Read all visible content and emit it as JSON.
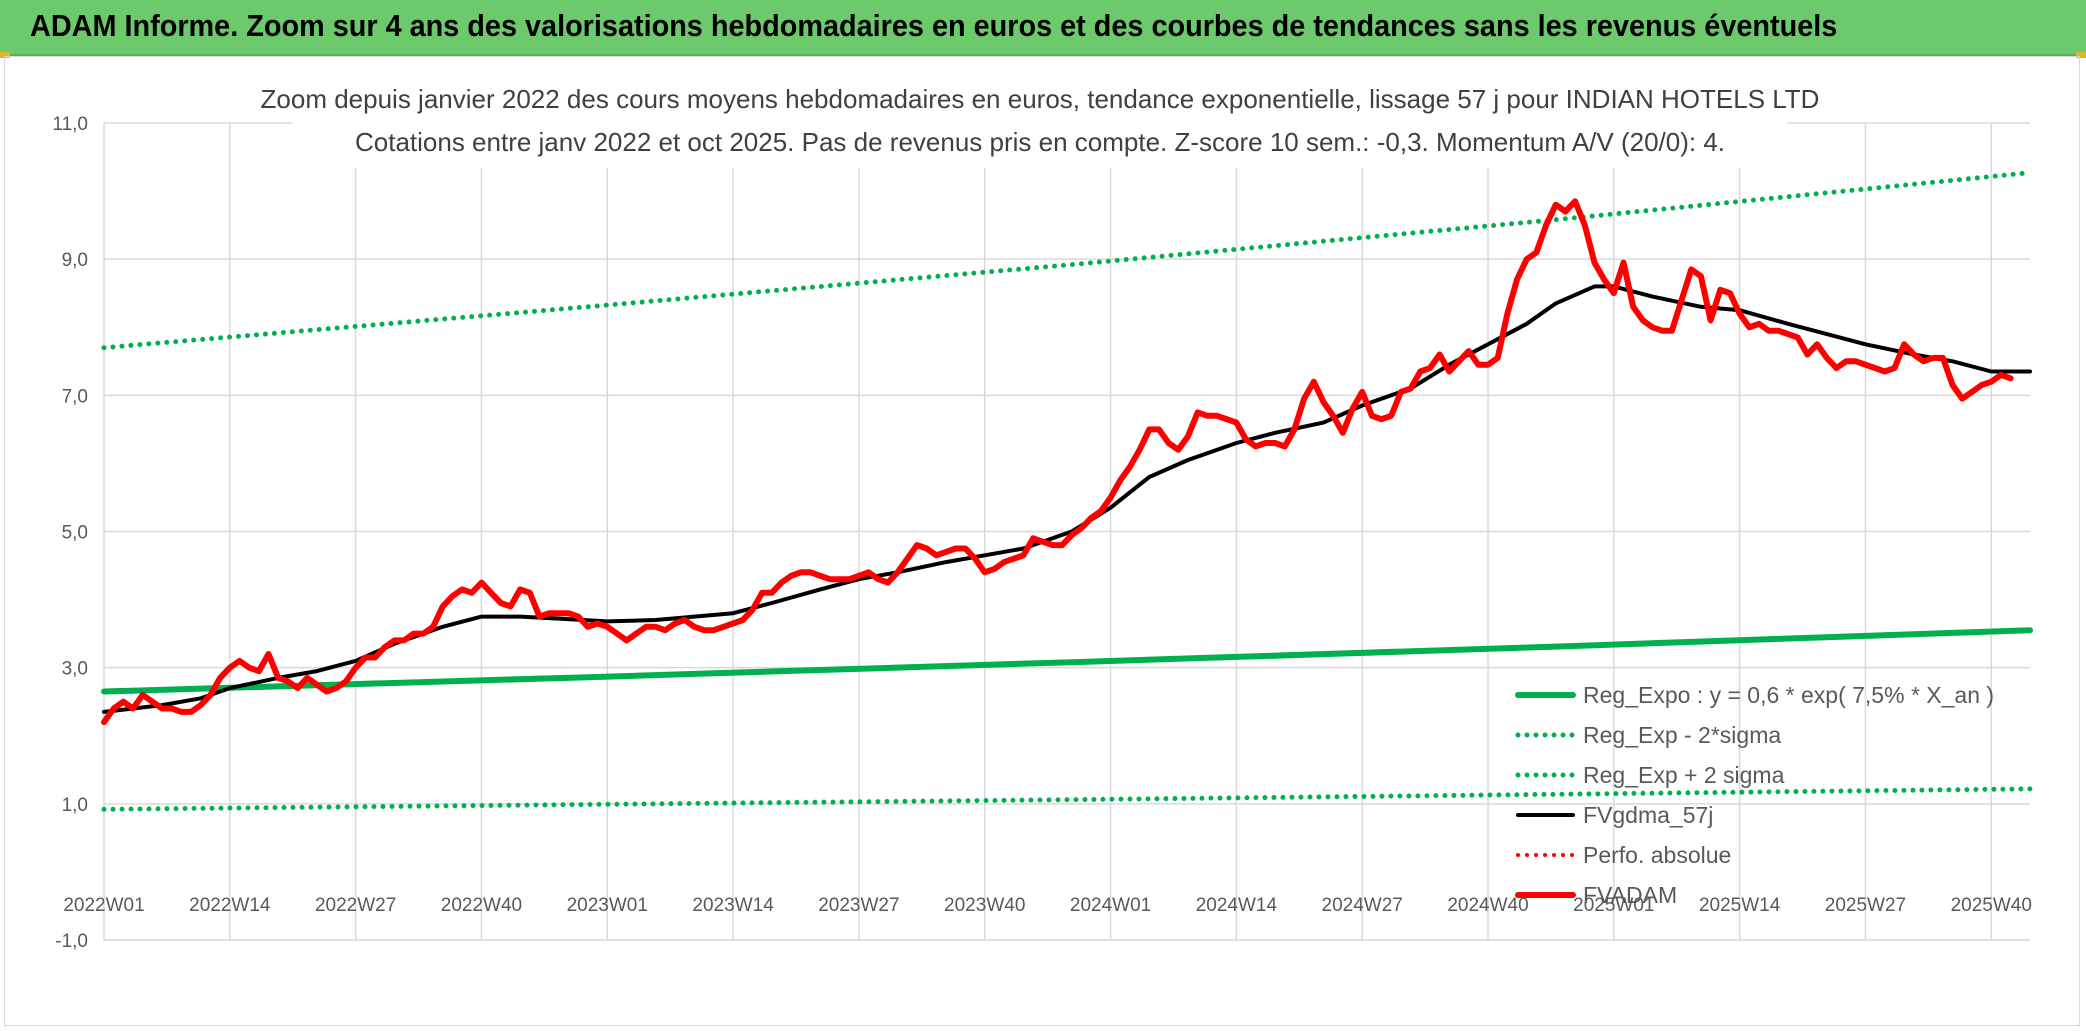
{
  "header": {
    "title": "ADAM Informe. Zoom sur 4 ans des valorisations hebdomadaires en euros et des courbes de tendances sans les revenus éventuels"
  },
  "colors": {
    "header_bg": "#6cc96c",
    "green": "#00b050",
    "black": "#000000",
    "red": "#ff0000",
    "grid": "#d9d9d9"
  },
  "chart_data": {
    "type": "line",
    "subtitle_lines": [
      "Zoom depuis janvier 2022 des cours moyens hebdomadaires en euros, tendance exponentielle, lissage 57 j pour INDIAN HOTELS LTD",
      "Cotations entre janv 2022 et oct 2025. Pas de revenus pris en compte. Z-score 10 sem.: -0,3. Momentum A/V (20/0): 4."
    ],
    "ylim": [
      -1,
      11
    ],
    "y_ticks": [
      {
        "value": 11,
        "label": "11,0"
      },
      {
        "value": 9,
        "label": "9,0"
      },
      {
        "value": 7,
        "label": "7,0"
      },
      {
        "value": 5,
        "label": "5,0"
      },
      {
        "value": 3,
        "label": "3,0"
      },
      {
        "value": 1,
        "label": "1,0"
      },
      {
        "value": -1,
        "label": "-1,0"
      }
    ],
    "x_range": [
      0,
      199
    ],
    "x_ticks": [
      {
        "index": 0,
        "label": "2022W01"
      },
      {
        "index": 13,
        "label": "2022W14"
      },
      {
        "index": 26,
        "label": "2022W27"
      },
      {
        "index": 39,
        "label": "2022W40"
      },
      {
        "index": 52,
        "label": "2023W01"
      },
      {
        "index": 65,
        "label": "2023W14"
      },
      {
        "index": 78,
        "label": "2023W27"
      },
      {
        "index": 91,
        "label": "2023W40"
      },
      {
        "index": 104,
        "label": "2024W01"
      },
      {
        "index": 117,
        "label": "2024W14"
      },
      {
        "index": 130,
        "label": "2024W27"
      },
      {
        "index": 143,
        "label": "2024W40"
      },
      {
        "index": 156,
        "label": "2025W01"
      },
      {
        "index": 169,
        "label": "2025W14"
      },
      {
        "index": 182,
        "label": "2025W27"
      },
      {
        "index": 195,
        "label": "2025W40"
      }
    ],
    "legend": {
      "placement": "bottom-right",
      "entries": [
        {
          "key": "reg_expo",
          "label": "Reg_Expo : y = 0,6 * exp( 7,5% *  X_an )"
        },
        {
          "key": "reg_minus",
          "label": "Reg_Exp - 2*sigma"
        },
        {
          "key": "reg_plus",
          "label": "Reg_Exp + 2 sigma"
        },
        {
          "key": "fvgdma",
          "label": "FVgdma_57j"
        },
        {
          "key": "perfo",
          "label": "Perfo. absolue"
        },
        {
          "key": "fvadam",
          "label": "FVADAM"
        }
      ]
    },
    "series": [
      {
        "key": "reg_expo",
        "name": "Reg_Expo : y = 0,6 * exp( 7,5% *  X_an )",
        "color": "#00b050",
        "style": "solid",
        "width": 6,
        "points": [
          [
            0,
            2.65
          ],
          [
            50,
            2.86
          ],
          [
            100,
            3.08
          ],
          [
            150,
            3.31
          ],
          [
            199,
            3.55
          ]
        ]
      },
      {
        "key": "reg_minus",
        "name": "Reg_Exp - 2*sigma",
        "color": "#00b050",
        "style": "dotted",
        "width": 5,
        "points": [
          [
            0,
            0.92
          ],
          [
            50,
            0.99
          ],
          [
            100,
            1.06
          ],
          [
            150,
            1.14
          ],
          [
            199,
            1.22
          ]
        ]
      },
      {
        "key": "reg_plus",
        "name": "Reg_Exp + 2 sigma",
        "color": "#00b050",
        "style": "dotted",
        "width": 5,
        "points": [
          [
            0,
            7.7
          ],
          [
            50,
            8.3
          ],
          [
            100,
            8.92
          ],
          [
            150,
            9.58
          ],
          [
            199,
            10.27
          ]
        ]
      },
      {
        "key": "fvgdma",
        "name": "FVgdma_57j",
        "color": "#000000",
        "style": "solid",
        "width": 4,
        "points": [
          [
            0,
            2.35
          ],
          [
            6,
            2.45
          ],
          [
            10,
            2.55
          ],
          [
            13,
            2.7
          ],
          [
            18,
            2.85
          ],
          [
            22,
            2.95
          ],
          [
            26,
            3.1
          ],
          [
            30,
            3.35
          ],
          [
            35,
            3.6
          ],
          [
            39,
            3.75
          ],
          [
            43,
            3.75
          ],
          [
            47,
            3.72
          ],
          [
            52,
            3.68
          ],
          [
            57,
            3.7
          ],
          [
            61,
            3.75
          ],
          [
            65,
            3.8
          ],
          [
            69,
            3.95
          ],
          [
            74,
            4.15
          ],
          [
            78,
            4.3
          ],
          [
            82,
            4.4
          ],
          [
            87,
            4.55
          ],
          [
            91,
            4.65
          ],
          [
            95,
            4.75
          ],
          [
            100,
            5.0
          ],
          [
            104,
            5.35
          ],
          [
            108,
            5.8
          ],
          [
            112,
            6.05
          ],
          [
            117,
            6.3
          ],
          [
            121,
            6.45
          ],
          [
            126,
            6.6
          ],
          [
            130,
            6.85
          ],
          [
            135,
            7.1
          ],
          [
            139,
            7.45
          ],
          [
            143,
            7.75
          ],
          [
            147,
            8.05
          ],
          [
            150,
            8.35
          ],
          [
            154,
            8.6
          ],
          [
            156,
            8.6
          ],
          [
            160,
            8.45
          ],
          [
            165,
            8.3
          ],
          [
            169,
            8.25
          ],
          [
            174,
            8.05
          ],
          [
            178,
            7.9
          ],
          [
            182,
            7.75
          ],
          [
            187,
            7.6
          ],
          [
            191,
            7.5
          ],
          [
            195,
            7.35
          ],
          [
            199,
            7.35
          ]
        ]
      },
      {
        "key": "fvadam",
        "name": "FVADAM",
        "color": "#ff0000",
        "style": "solid",
        "width": 6,
        "points": [
          [
            0,
            2.2
          ],
          [
            1,
            2.4
          ],
          [
            2,
            2.5
          ],
          [
            3,
            2.4
          ],
          [
            4,
            2.6
          ],
          [
            5,
            2.5
          ],
          [
            6,
            2.4
          ],
          [
            7,
            2.4
          ],
          [
            8,
            2.35
          ],
          [
            9,
            2.35
          ],
          [
            10,
            2.45
          ],
          [
            11,
            2.6
          ],
          [
            12,
            2.85
          ],
          [
            13,
            3.0
          ],
          [
            14,
            3.1
          ],
          [
            15,
            3.0
          ],
          [
            16,
            2.95
          ],
          [
            17,
            3.2
          ],
          [
            18,
            2.85
          ],
          [
            19,
            2.8
          ],
          [
            20,
            2.7
          ],
          [
            21,
            2.85
          ],
          [
            22,
            2.75
          ],
          [
            23,
            2.65
          ],
          [
            24,
            2.7
          ],
          [
            25,
            2.8
          ],
          [
            26,
            3.0
          ],
          [
            27,
            3.15
          ],
          [
            28,
            3.15
          ],
          [
            29,
            3.3
          ],
          [
            30,
            3.4
          ],
          [
            31,
            3.4
          ],
          [
            32,
            3.5
          ],
          [
            33,
            3.5
          ],
          [
            34,
            3.6
          ],
          [
            35,
            3.9
          ],
          [
            36,
            4.05
          ],
          [
            37,
            4.15
          ],
          [
            38,
            4.1
          ],
          [
            39,
            4.25
          ],
          [
            40,
            4.1
          ],
          [
            41,
            3.95
          ],
          [
            42,
            3.9
          ],
          [
            43,
            4.15
          ],
          [
            44,
            4.1
          ],
          [
            45,
            3.75
          ],
          [
            46,
            3.8
          ],
          [
            47,
            3.8
          ],
          [
            48,
            3.8
          ],
          [
            49,
            3.75
          ],
          [
            50,
            3.6
          ],
          [
            51,
            3.65
          ],
          [
            52,
            3.6
          ],
          [
            53,
            3.5
          ],
          [
            54,
            3.4
          ],
          [
            55,
            3.5
          ],
          [
            56,
            3.6
          ],
          [
            57,
            3.6
          ],
          [
            58,
            3.55
          ],
          [
            59,
            3.65
          ],
          [
            60,
            3.7
          ],
          [
            61,
            3.6
          ],
          [
            62,
            3.55
          ],
          [
            63,
            3.55
          ],
          [
            64,
            3.6
          ],
          [
            65,
            3.65
          ],
          [
            66,
            3.7
          ],
          [
            67,
            3.85
          ],
          [
            68,
            4.1
          ],
          [
            69,
            4.1
          ],
          [
            70,
            4.25
          ],
          [
            71,
            4.35
          ],
          [
            72,
            4.4
          ],
          [
            73,
            4.4
          ],
          [
            74,
            4.35
          ],
          [
            75,
            4.3
          ],
          [
            76,
            4.3
          ],
          [
            77,
            4.3
          ],
          [
            78,
            4.35
          ],
          [
            79,
            4.4
          ],
          [
            80,
            4.3
          ],
          [
            81,
            4.25
          ],
          [
            82,
            4.4
          ],
          [
            83,
            4.6
          ],
          [
            84,
            4.8
          ],
          [
            85,
            4.75
          ],
          [
            86,
            4.65
          ],
          [
            87,
            4.7
          ],
          [
            88,
            4.75
          ],
          [
            89,
            4.75
          ],
          [
            90,
            4.6
          ],
          [
            91,
            4.4
          ],
          [
            92,
            4.45
          ],
          [
            93,
            4.55
          ],
          [
            94,
            4.6
          ],
          [
            95,
            4.65
          ],
          [
            96,
            4.9
          ],
          [
            97,
            4.85
          ],
          [
            98,
            4.8
          ],
          [
            99,
            4.8
          ],
          [
            100,
            4.95
          ],
          [
            101,
            5.05
          ],
          [
            102,
            5.2
          ],
          [
            103,
            5.3
          ],
          [
            104,
            5.5
          ],
          [
            105,
            5.75
          ],
          [
            106,
            5.95
          ],
          [
            107,
            6.2
          ],
          [
            108,
            6.5
          ],
          [
            109,
            6.5
          ],
          [
            110,
            6.3
          ],
          [
            111,
            6.2
          ],
          [
            112,
            6.4
          ],
          [
            113,
            6.75
          ],
          [
            114,
            6.7
          ],
          [
            115,
            6.7
          ],
          [
            116,
            6.65
          ],
          [
            117,
            6.6
          ],
          [
            118,
            6.35
          ],
          [
            119,
            6.25
          ],
          [
            120,
            6.3
          ],
          [
            121,
            6.3
          ],
          [
            122,
            6.25
          ],
          [
            123,
            6.5
          ],
          [
            124,
            6.95
          ],
          [
            125,
            7.2
          ],
          [
            126,
            6.9
          ],
          [
            127,
            6.7
          ],
          [
            128,
            6.45
          ],
          [
            129,
            6.8
          ],
          [
            130,
            7.05
          ],
          [
            131,
            6.7
          ],
          [
            132,
            6.65
          ],
          [
            133,
            6.7
          ],
          [
            134,
            7.05
          ],
          [
            135,
            7.1
          ],
          [
            136,
            7.35
          ],
          [
            137,
            7.4
          ],
          [
            138,
            7.6
          ],
          [
            139,
            7.35
          ],
          [
            140,
            7.5
          ],
          [
            141,
            7.65
          ],
          [
            142,
            7.45
          ],
          [
            143,
            7.45
          ],
          [
            144,
            7.55
          ],
          [
            145,
            8.2
          ],
          [
            146,
            8.7
          ],
          [
            147,
            9.0
          ],
          [
            148,
            9.1
          ],
          [
            149,
            9.5
          ],
          [
            150,
            9.8
          ],
          [
            151,
            9.7
          ],
          [
            152,
            9.85
          ],
          [
            153,
            9.5
          ],
          [
            154,
            8.95
          ],
          [
            155,
            8.7
          ],
          [
            156,
            8.5
          ],
          [
            157,
            8.95
          ],
          [
            158,
            8.3
          ],
          [
            159,
            8.1
          ],
          [
            160,
            8.0
          ],
          [
            161,
            7.95
          ],
          [
            162,
            7.95
          ],
          [
            163,
            8.4
          ],
          [
            164,
            8.85
          ],
          [
            165,
            8.75
          ],
          [
            166,
            8.1
          ],
          [
            167,
            8.55
          ],
          [
            168,
            8.5
          ],
          [
            169,
            8.2
          ],
          [
            170,
            8.0
          ],
          [
            171,
            8.05
          ],
          [
            172,
            7.95
          ],
          [
            173,
            7.95
          ],
          [
            174,
            7.9
          ],
          [
            175,
            7.85
          ],
          [
            176,
            7.6
          ],
          [
            177,
            7.75
          ],
          [
            178,
            7.55
          ],
          [
            179,
            7.4
          ],
          [
            180,
            7.5
          ],
          [
            181,
            7.5
          ],
          [
            182,
            7.45
          ],
          [
            183,
            7.4
          ],
          [
            184,
            7.35
          ],
          [
            185,
            7.4
          ],
          [
            186,
            7.75
          ],
          [
            187,
            7.6
          ],
          [
            188,
            7.5
          ],
          [
            189,
            7.55
          ],
          [
            190,
            7.55
          ],
          [
            191,
            7.15
          ],
          [
            192,
            6.95
          ],
          [
            193,
            7.05
          ],
          [
            194,
            7.15
          ],
          [
            195,
            7.2
          ],
          [
            196,
            7.3
          ],
          [
            197,
            7.25
          ]
        ]
      }
    ]
  }
}
